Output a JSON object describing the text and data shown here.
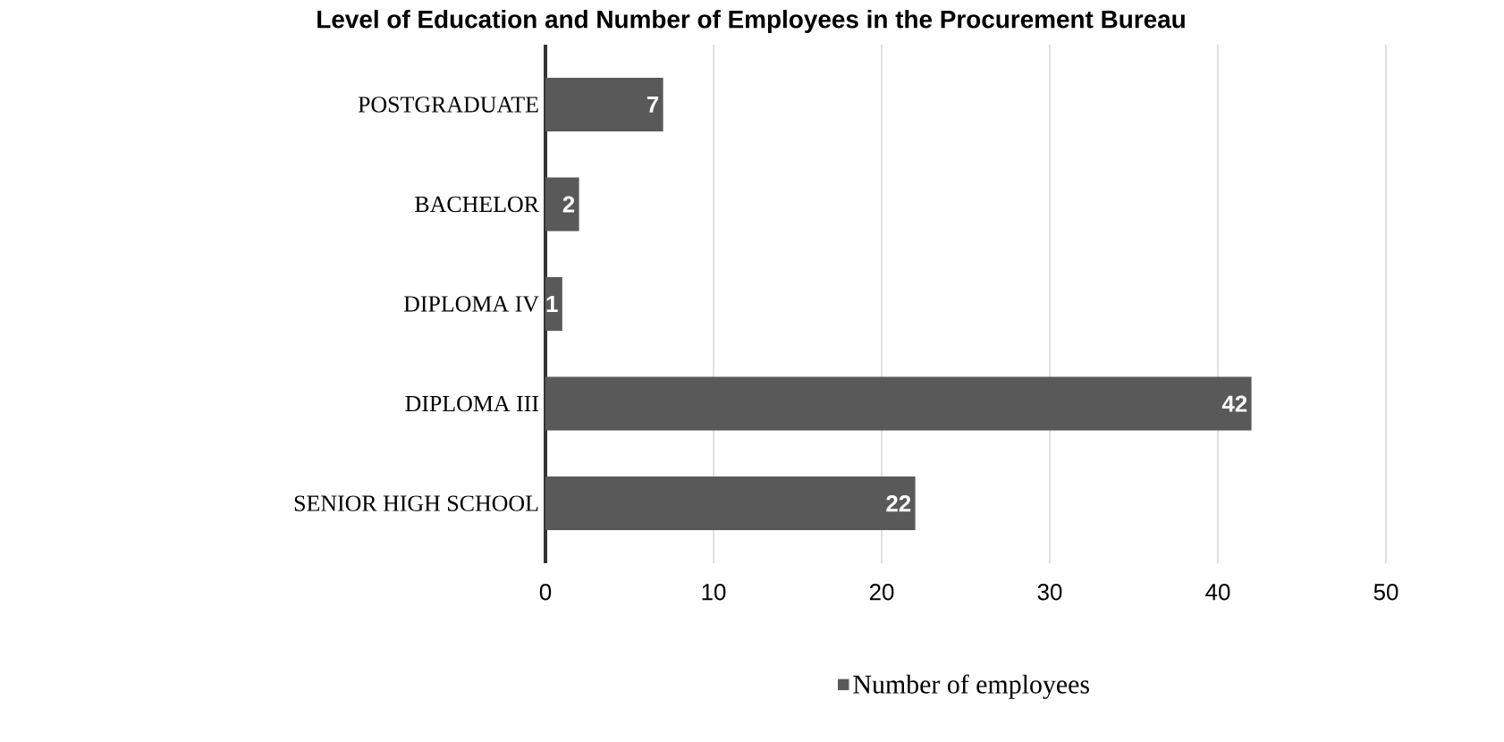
{
  "chart_data": {
    "type": "bar",
    "orientation": "horizontal",
    "title": "Level of Education and Number of Employees in the Procurement Bureau",
    "categories": [
      "POSTGRADUATE",
      "BACHELOR",
      "DIPLOMA IV",
      "DIPLOMA III",
      "SENIOR HIGH SCHOOL"
    ],
    "series": [
      {
        "name": "Number of employees",
        "color": "#595959",
        "values": [
          7,
          2,
          1,
          42,
          22
        ]
      }
    ],
    "xlim": [
      0,
      50
    ],
    "xticks": [
      0,
      10,
      20,
      30,
      40,
      50
    ],
    "grid": "x",
    "legend": "bottom",
    "data_labels": true
  }
}
